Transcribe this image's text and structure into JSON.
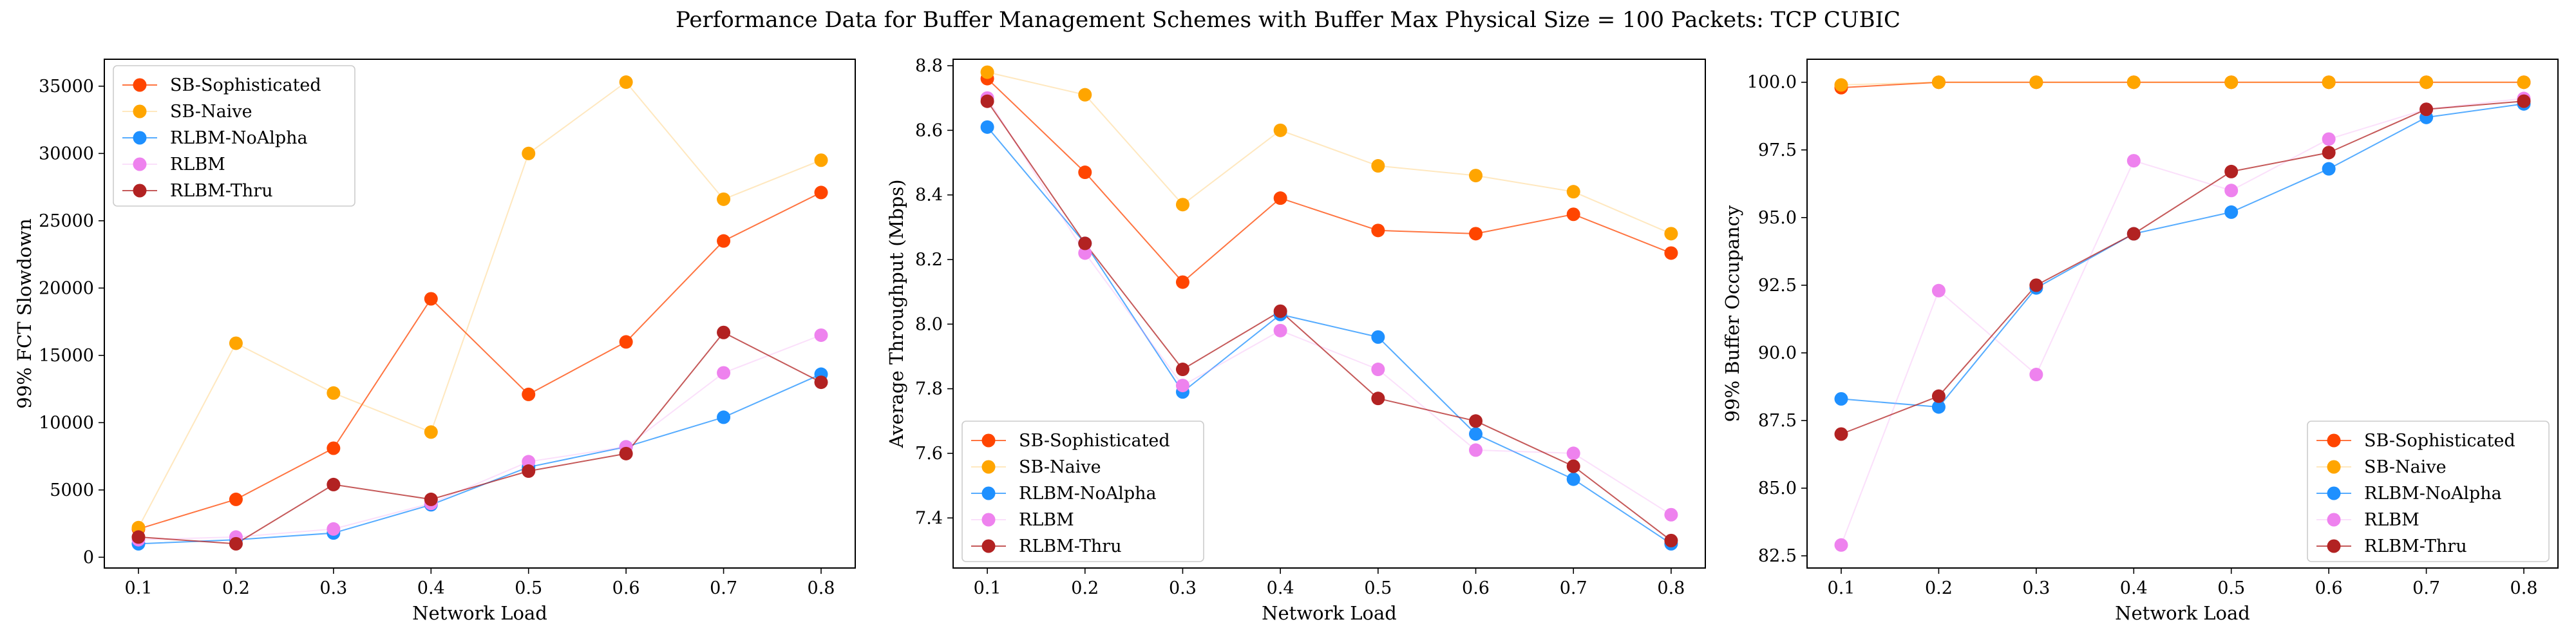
{
  "figure": {
    "title": "Performance Data for Buffer Management Schemes with Buffer Max Physical Size = 100 Packets: TCP CUBIC"
  },
  "chart_data": [
    {
      "type": "line",
      "xlabel": "Network Load",
      "ylabel": "99% FCT Slowdown",
      "x": [
        0.1,
        0.2,
        0.3,
        0.4,
        0.5,
        0.6,
        0.7,
        0.8
      ],
      "x_tick_labels": [
        "0.1",
        "0.2",
        "0.3",
        "0.4",
        "0.5",
        "0.6",
        "0.7",
        "0.8"
      ],
      "xlim": [
        0.065,
        0.835
      ],
      "ylim": [
        -800,
        37000
      ],
      "y_ticks": [
        0,
        5000,
        10000,
        15000,
        20000,
        25000,
        30000,
        35000
      ],
      "y_tick_labels": [
        "0",
        "5000",
        "10000",
        "15000",
        "20000",
        "25000",
        "30000",
        "35000"
      ],
      "legend": "upper-left",
      "series": [
        {
          "name": "SB-Sophisticated",
          "color": "#ff4500",
          "line_alpha": 0.75,
          "values": [
            2100,
            4300,
            8100,
            19200,
            12100,
            16000,
            23500,
            27100
          ]
        },
        {
          "name": "SB-Naive",
          "color": "#ffa500",
          "line_alpha": 0.25,
          "values": [
            2200,
            15900,
            12200,
            9300,
            30000,
            35300,
            26600,
            29500
          ]
        },
        {
          "name": "RLBM-NoAlpha",
          "color": "#1e90ff",
          "line_alpha": 0.75,
          "values": [
            1000,
            1300,
            1800,
            3900,
            6700,
            8200,
            10400,
            13600
          ]
        },
        {
          "name": "RLBM",
          "color": "#ee82ee",
          "line_alpha": 0.25,
          "values": [
            1300,
            1500,
            2100,
            4000,
            7100,
            8200,
            13700,
            16500
          ]
        },
        {
          "name": "RLBM-Thru",
          "color": "#b22222",
          "line_alpha": 0.75,
          "values": [
            1500,
            1000,
            5400,
            4300,
            6400,
            7700,
            16700,
            13000
          ]
        }
      ]
    },
    {
      "type": "line",
      "xlabel": "Network Load",
      "ylabel": "Average Throughput (Mbps)",
      "x": [
        0.1,
        0.2,
        0.3,
        0.4,
        0.5,
        0.6,
        0.7,
        0.8
      ],
      "x_tick_labels": [
        "0.1",
        "0.2",
        "0.3",
        "0.4",
        "0.5",
        "0.6",
        "0.7",
        "0.8"
      ],
      "xlim": [
        0.065,
        0.835
      ],
      "ylim": [
        7.245,
        8.82
      ],
      "y_ticks": [
        7.4,
        7.6,
        7.8,
        8.0,
        8.2,
        8.4,
        8.6,
        8.8
      ],
      "y_tick_labels": [
        "7.4",
        "7.6",
        "7.8",
        "8.0",
        "8.2",
        "8.4",
        "8.6",
        "8.8"
      ],
      "legend": "lower-left",
      "series": [
        {
          "name": "SB-Sophisticated",
          "color": "#ff4500",
          "line_alpha": 0.75,
          "values": [
            8.76,
            8.47,
            8.13,
            8.39,
            8.29,
            8.28,
            8.34,
            8.22
          ]
        },
        {
          "name": "SB-Naive",
          "color": "#ffa500",
          "line_alpha": 0.25,
          "values": [
            8.78,
            8.71,
            8.37,
            8.6,
            8.49,
            8.46,
            8.41,
            8.28
          ]
        },
        {
          "name": "RLBM-NoAlpha",
          "color": "#1e90ff",
          "line_alpha": 0.75,
          "values": [
            8.61,
            8.25,
            7.79,
            8.03,
            7.96,
            7.66,
            7.52,
            7.32
          ]
        },
        {
          "name": "RLBM",
          "color": "#ee82ee",
          "line_alpha": 0.25,
          "values": [
            8.7,
            8.22,
            7.81,
            7.98,
            7.86,
            7.61,
            7.6,
            7.41
          ]
        },
        {
          "name": "RLBM-Thru",
          "color": "#b22222",
          "line_alpha": 0.75,
          "values": [
            8.69,
            8.25,
            7.86,
            8.04,
            7.77,
            7.7,
            7.56,
            7.33
          ]
        }
      ]
    },
    {
      "type": "line",
      "xlabel": "Network Load",
      "ylabel": "99% Buffer Occupancy",
      "x": [
        0.1,
        0.2,
        0.3,
        0.4,
        0.5,
        0.6,
        0.7,
        0.8
      ],
      "x_tick_labels": [
        "0.1",
        "0.2",
        "0.3",
        "0.4",
        "0.5",
        "0.6",
        "0.7",
        "0.8"
      ],
      "xlim": [
        0.065,
        0.835
      ],
      "ylim": [
        82.05,
        100.85
      ],
      "y_ticks": [
        82.5,
        85.0,
        87.5,
        90.0,
        92.5,
        95.0,
        97.5,
        100.0
      ],
      "y_tick_labels": [
        "82.5",
        "85.0",
        "87.5",
        "90.0",
        "92.5",
        "95.0",
        "97.5",
        "100.0"
      ],
      "legend": "lower-right",
      "series": [
        {
          "name": "SB-Sophisticated",
          "color": "#ff4500",
          "line_alpha": 0.75,
          "values": [
            99.8,
            100.0,
            100.0,
            100.0,
            100.0,
            100.0,
            100.0,
            100.0
          ]
        },
        {
          "name": "SB-Naive",
          "color": "#ffa500",
          "line_alpha": 0.25,
          "values": [
            99.9,
            100.0,
            100.0,
            100.0,
            100.0,
            100.0,
            100.0,
            100.0
          ]
        },
        {
          "name": "RLBM-NoAlpha",
          "color": "#1e90ff",
          "line_alpha": 0.75,
          "values": [
            88.3,
            88.0,
            92.4,
            94.4,
            95.2,
            96.8,
            98.7,
            99.2
          ]
        },
        {
          "name": "RLBM",
          "color": "#ee82ee",
          "line_alpha": 0.25,
          "values": [
            82.9,
            92.3,
            89.2,
            97.1,
            96.0,
            97.9,
            99.0,
            99.4
          ]
        },
        {
          "name": "RLBM-Thru",
          "color": "#b22222",
          "line_alpha": 0.75,
          "values": [
            87.0,
            88.4,
            92.5,
            94.4,
            96.7,
            97.4,
            99.0,
            99.3
          ]
        }
      ]
    }
  ]
}
